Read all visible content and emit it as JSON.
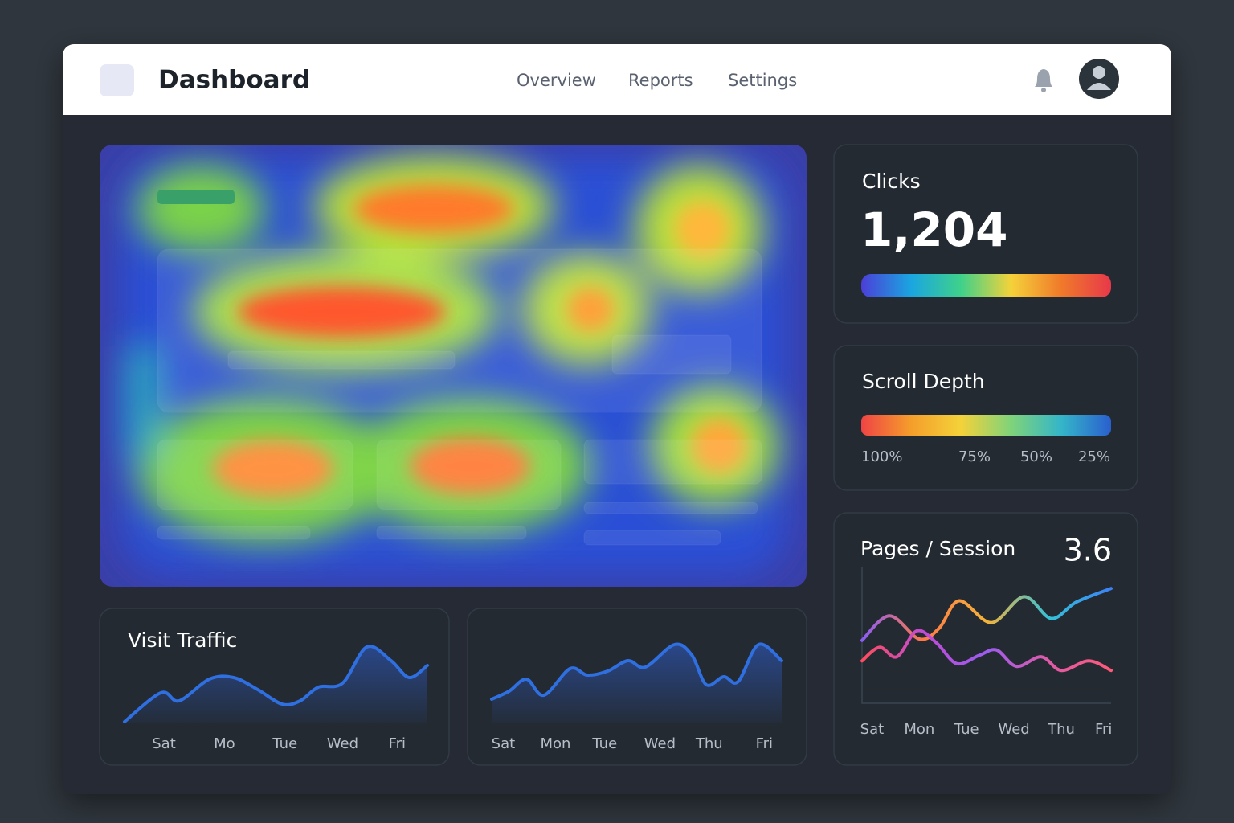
{
  "header": {
    "title": "Dashboard",
    "nav": [
      "Overview",
      "Reports",
      "Settings"
    ]
  },
  "clicks": {
    "title": "Clicks",
    "value": "1,204",
    "colors": [
      "#4b3fd8",
      "#1aa6e0",
      "#3fd18a",
      "#f4d23a",
      "#f07a2a",
      "#e8384a"
    ]
  },
  "scroll_depth": {
    "title": "Scroll Depth",
    "labels": [
      "100%",
      "75%",
      "50%",
      "25%"
    ],
    "colors": [
      "#ef4444",
      "#f59e2b",
      "#f4d23a",
      "#7fd37a",
      "#34b6c8",
      "#2a5fcf"
    ]
  },
  "visit_traffic": {
    "title": "Visit Traffic",
    "chart": {
      "type": "area",
      "color": "#2f6fe0",
      "x": [
        0,
        12,
        18,
        28,
        36,
        44,
        52,
        58,
        64,
        72,
        80,
        88,
        94,
        100
      ],
      "values": [
        2,
        38,
        28,
        55,
        57,
        42,
        24,
        28,
        45,
        50,
        95,
        78,
        57,
        72
      ],
      "xlim": [
        0,
        100
      ],
      "ylim": [
        0,
        100
      ],
      "xticks": [
        {
          "value": 13,
          "label": "Sat"
        },
        {
          "value": 33,
          "label": "Mo"
        },
        {
          "value": 53,
          "label": "Tue"
        },
        {
          "value": 72,
          "label": "Wed"
        },
        {
          "value": 90,
          "label": "Fri"
        }
      ]
    }
  },
  "weekly_traffic": {
    "chart": {
      "type": "area",
      "color": "#2f6fe0",
      "x": [
        0,
        6,
        12,
        18,
        27,
        33,
        40,
        47,
        53,
        63,
        69,
        74,
        80,
        85,
        92,
        100
      ],
      "values": [
        30,
        40,
        55,
        35,
        68,
        60,
        65,
        78,
        70,
        98,
        85,
        48,
        58,
        52,
        98,
        78
      ],
      "xlim": [
        0,
        100
      ],
      "ylim": [
        0,
        100
      ],
      "xticks": [
        {
          "value": 4,
          "label": "Sat"
        },
        {
          "value": 22,
          "label": "Mon"
        },
        {
          "value": 39,
          "label": "Tue"
        },
        {
          "value": 58,
          "label": "Wed"
        },
        {
          "value": 75,
          "label": "Thu"
        },
        {
          "value": 94,
          "label": "Fri"
        }
      ]
    }
  },
  "pages_session": {
    "title": "Pages / Session",
    "value": "3.6",
    "chart": {
      "type": "line",
      "xlim": [
        0,
        100
      ],
      "ylim": [
        0,
        100
      ],
      "xticks": [
        {
          "value": 4,
          "label": "Sat"
        },
        {
          "value": 23,
          "label": "Mon"
        },
        {
          "value": 42,
          "label": "Tue"
        },
        {
          "value": 61,
          "label": "Wed"
        },
        {
          "value": 80,
          "label": "Thu"
        },
        {
          "value": 97,
          "label": "Fri"
        }
      ],
      "series": [
        {
          "colors": [
            "#8b5cf6",
            "#ff7a45",
            "#f4b33a",
            "#36c1d6",
            "#3b82f6"
          ],
          "x": [
            0,
            11,
            23,
            31,
            39,
            52,
            65,
            76,
            86,
            100
          ],
          "values": [
            46,
            64,
            47,
            55,
            75,
            59,
            78,
            62,
            74,
            84
          ]
        },
        {
          "colors": [
            "#ff4d5e",
            "#c04bd6",
            "#9b5cf0",
            "#e05aa8",
            "#ff5a7a"
          ],
          "x": [
            0,
            7,
            14,
            22,
            30,
            38,
            47,
            54,
            62,
            72,
            80,
            91,
            100
          ],
          "values": [
            31,
            41,
            34,
            53,
            44,
            29,
            35,
            39,
            27,
            34,
            24,
            31,
            24
          ]
        }
      ]
    }
  }
}
